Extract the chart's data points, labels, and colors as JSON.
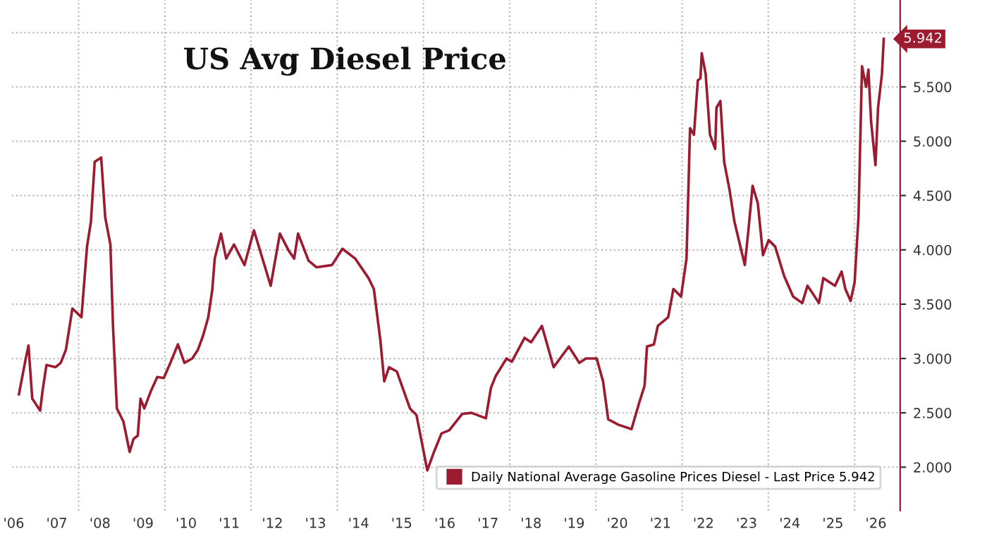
{
  "chart_data": {
    "type": "line",
    "title": "US Avg Diesel Price",
    "x": [
      "2006-08-14",
      "2006-10-11",
      "2006-11-03",
      "2006-12-05",
      "2007-02-10",
      "2007-03-02",
      "2007-04-04",
      "2007-06-20",
      "2007-08-03",
      "2007-09-16",
      "2007-11-10",
      "2008-01-26",
      "2008-03-13",
      "2008-04-15",
      "2008-05-17",
      "2008-07-11",
      "2008-08-14",
      "2008-09-27",
      "2008-10-19",
      "2008-11-21",
      "2009-01-15",
      "2009-03-09",
      "2009-04-11",
      "2009-05-17",
      "2009-06-09",
      "2009-07-11",
      "2009-09-05",
      "2009-10-29",
      "2009-12-23",
      "2010-02-17",
      "2010-04-22",
      "2010-06-16",
      "2010-08-21",
      "2010-10-08",
      "2010-11-21",
      "2011-01-04",
      "2011-02-07",
      "2011-02-28",
      "2011-04-22",
      "2011-06-05",
      "2011-08-10",
      "2011-11-07",
      "2012-01-26",
      "2012-06-16",
      "2012-09-02",
      "2012-11-17",
      "2013-01-01",
      "2013-02-03",
      "2013-05-03",
      "2013-07-08",
      "2013-11-17",
      "2014-02-14",
      "2014-06-02",
      "2014-09-23",
      "2014-11-07",
      "2015-01-01",
      "2015-02-03",
      "2015-03-16",
      "2015-05-21",
      "2015-09-09",
      "2015-11-03",
      "2016-02-03",
      "2016-03-27",
      "2016-06-02",
      "2016-08-07",
      "2016-11-25",
      "2017-02-10",
      "2017-06-13",
      "2017-07-26",
      "2017-09-05",
      "2017-12-05",
      "2018-01-19",
      "2018-05-07",
      "2018-07-01",
      "2018-10-01",
      "2019-01-08",
      "2019-05-17",
      "2019-08-14",
      "2019-10-08",
      "2020-01-08",
      "2020-03-02",
      "2020-04-15",
      "2020-07-11",
      "2020-10-29",
      "2021-01-04",
      "2021-02-17",
      "2021-03-09",
      "2021-05-07",
      "2021-06-09",
      "2021-09-05",
      "2021-10-19",
      "2021-12-23",
      "2022-02-07",
      "2022-03-09",
      "2022-04-11",
      "2022-05-14",
      "2022-06-05",
      "2022-06-16",
      "2022-07-19",
      "2022-08-25",
      "2022-10-08",
      "2022-10-19",
      "2022-11-21",
      "2022-12-23",
      "2023-02-07",
      "2023-03-20",
      "2023-05-14",
      "2023-06-16",
      "2023-07-19",
      "2023-08-21",
      "2023-10-04",
      "2023-11-17",
      "2024-01-04",
      "2024-02-28",
      "2024-05-14",
      "2024-07-29",
      "2024-10-15",
      "2024-11-28",
      "2025-01-11",
      "2025-03-05",
      "2025-04-11",
      "2025-07-19",
      "2025-09-13",
      "2025-10-15",
      "2025-11-28",
      "2026-01-01",
      "2026-02-03",
      "2026-03-05",
      "2026-04-08",
      "2026-04-28",
      "2026-05-21",
      "2026-06-27",
      "2026-07-19",
      "2026-08-21",
      "2026-09-05"
    ],
    "series": [
      {
        "name": "Daily National Average Gasoline Prices Diesel - Last Price 5.942",
        "color": "#9b1b30",
        "values": [
          2.67,
          3.0,
          3.12,
          2.63,
          2.52,
          2.7,
          2.94,
          2.92,
          2.96,
          3.08,
          3.46,
          3.38,
          4.03,
          4.26,
          4.81,
          4.85,
          4.3,
          4.05,
          3.3,
          2.54,
          2.42,
          2.14,
          2.26,
          2.29,
          2.63,
          2.54,
          2.7,
          2.83,
          2.82,
          2.96,
          3.13,
          2.96,
          3.0,
          3.08,
          3.21,
          3.38,
          3.63,
          3.92,
          4.15,
          3.92,
          4.05,
          3.86,
          4.18,
          3.67,
          4.15,
          3.99,
          3.92,
          4.15,
          3.9,
          3.84,
          3.86,
          4.01,
          3.92,
          3.74,
          3.64,
          3.17,
          2.79,
          2.92,
          2.88,
          2.54,
          2.48,
          1.97,
          2.13,
          2.31,
          2.34,
          2.49,
          2.5,
          2.45,
          2.73,
          2.84,
          3.0,
          2.97,
          3.19,
          3.15,
          3.3,
          2.92,
          3.11,
          2.96,
          3.0,
          3.0,
          2.79,
          2.44,
          2.39,
          2.35,
          2.6,
          2.75,
          3.11,
          3.13,
          3.3,
          3.38,
          3.64,
          3.57,
          3.92,
          5.12,
          5.06,
          5.56,
          5.58,
          5.81,
          5.62,
          5.06,
          4.93,
          5.31,
          5.37,
          4.81,
          4.55,
          4.26,
          4.01,
          3.86,
          4.21,
          4.59,
          4.43,
          3.95,
          4.09,
          4.03,
          3.76,
          3.57,
          3.51,
          3.67,
          3.6,
          3.51,
          3.74,
          3.67,
          3.8,
          3.64,
          3.53,
          3.7,
          4.3,
          5.69,
          5.5,
          5.66,
          5.18,
          4.78,
          5.31,
          5.62,
          5.942
        ]
      }
    ],
    "xlim": [
      "2006-06-15",
      "2027-01-22"
    ],
    "xticks": [
      {
        "value": "2006-07-01",
        "label": "'06"
      },
      {
        "value": "2007-07-01",
        "label": "'07"
      },
      {
        "value": "2008-07-01",
        "label": "'08"
      },
      {
        "value": "2009-07-01",
        "label": "'09"
      },
      {
        "value": "2010-07-01",
        "label": "'10"
      },
      {
        "value": "2011-07-01",
        "label": "'11"
      },
      {
        "value": "2012-07-01",
        "label": "'12"
      },
      {
        "value": "2013-07-01",
        "label": "'13"
      },
      {
        "value": "2014-07-01",
        "label": "'14"
      },
      {
        "value": "2015-07-01",
        "label": "'15"
      },
      {
        "value": "2016-07-01",
        "label": "'16"
      },
      {
        "value": "2017-07-01",
        "label": "'17"
      },
      {
        "value": "2018-07-01",
        "label": "'18"
      },
      {
        "value": "2019-07-01",
        "label": "'19"
      },
      {
        "value": "2020-07-01",
        "label": "'20"
      },
      {
        "value": "2021-07-01",
        "label": "'21"
      },
      {
        "value": "2022-07-01",
        "label": "'22"
      },
      {
        "value": "2023-07-01",
        "label": "'23"
      },
      {
        "value": "2024-07-01",
        "label": "'24"
      },
      {
        "value": "2025-07-01",
        "label": "'25"
      },
      {
        "value": "2026-07-01",
        "label": "'26"
      },
      {
        "value": "2008-01-01",
        "label": null
      },
      {
        "value": "2010-01-01",
        "label": null
      },
      {
        "value": "2012-01-01",
        "label": null
      },
      {
        "value": "2014-01-01",
        "label": null
      },
      {
        "value": "2016-01-01",
        "label": null
      },
      {
        "value": "2018-01-01",
        "label": null
      },
      {
        "value": "2020-01-01",
        "label": null
      },
      {
        "value": "2022-01-01",
        "label": null
      },
      {
        "value": "2024-01-01",
        "label": null
      },
      {
        "value": "2026-01-01",
        "label": null
      }
    ],
    "ylim": [
      1.6,
      6.3
    ],
    "yticks": [
      {
        "value": 2,
        "label": "2.000"
      },
      {
        "value": 2.5,
        "label": "2.500"
      },
      {
        "value": 3,
        "label": "3.000"
      },
      {
        "value": 3.5,
        "label": "3.500"
      },
      {
        "value": 4,
        "label": "4.000"
      },
      {
        "value": 4.5,
        "label": "4.500"
      },
      {
        "value": 5,
        "label": "5.000"
      },
      {
        "value": 5.5,
        "label": "5.500"
      },
      {
        "value": 6,
        "label": null
      }
    ],
    "annotations": [
      {
        "text": "5.942",
        "x": "2026-09-05",
        "y": 5.942
      }
    ],
    "grid": true,
    "legend": "bottom right",
    "marker": "none",
    "line_style": "solid"
  }
}
